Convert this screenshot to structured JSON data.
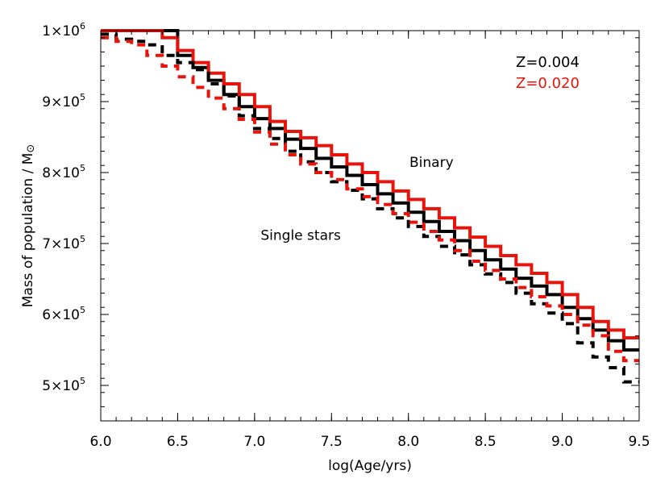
{
  "chart_data": {
    "type": "line",
    "title": "",
    "xlabel": "log(Age/yrs)",
    "ylabel": "Mass of population / M",
    "ylabel_symbol": "⊙",
    "xlim": [
      6.0,
      9.5
    ],
    "ylim": [
      450000,
      1000000
    ],
    "xticks": [
      {
        "value": 6.0,
        "label": "6.0"
      },
      {
        "value": 6.5,
        "label": "6.5"
      },
      {
        "value": 7.0,
        "label": "7.0"
      },
      {
        "value": 7.5,
        "label": "7.5"
      },
      {
        "value": 8.0,
        "label": "8.0"
      },
      {
        "value": 8.5,
        "label": "8.5"
      },
      {
        "value": 9.0,
        "label": "9.0"
      },
      {
        "value": 9.5,
        "label": "9.5"
      }
    ],
    "yticks": [
      {
        "value": 500000,
        "mantissa": "5×10",
        "exp": "5"
      },
      {
        "value": 600000,
        "mantissa": "6×10",
        "exp": "5"
      },
      {
        "value": 700000,
        "mantissa": "7×10",
        "exp": "5"
      },
      {
        "value": 800000,
        "mantissa": "8×10",
        "exp": "5"
      },
      {
        "value": 900000,
        "mantissa": "9×10",
        "exp": "5"
      },
      {
        "value": 1000000,
        "mantissa": "1×10",
        "exp": "6"
      }
    ],
    "legend": [
      {
        "label": "Z=0.004",
        "color": "#000000"
      },
      {
        "label": "Z=0.020",
        "color": "#e8140c"
      }
    ],
    "annotations": [
      {
        "text": "Binary",
        "x": 8.15,
        "y": 808000
      },
      {
        "text": "Single stars",
        "x": 7.3,
        "y": 705000
      }
    ],
    "step_width": 0.1,
    "grid": false,
    "series": [
      {
        "metallicity": "Z=0.004",
        "population": "Binary",
        "color": "#000000",
        "dash": "solid",
        "x": [
          6.0,
          6.1,
          6.2,
          6.3,
          6.4,
          6.5,
          6.6,
          6.7,
          6.8,
          6.9,
          7.0,
          7.1,
          7.2,
          7.3,
          7.4,
          7.5,
          7.6,
          7.7,
          7.8,
          7.9,
          8.0,
          8.1,
          8.2,
          8.3,
          8.4,
          8.5,
          8.6,
          8.7,
          8.8,
          8.9,
          9.0,
          9.1,
          9.2,
          9.3,
          9.4
        ],
        "y": [
          1000000,
          1000000,
          1000000,
          1000000,
          1000000,
          965000,
          948000,
          930000,
          910000,
          893000,
          876000,
          862000,
          847000,
          834000,
          820000,
          808000,
          796000,
          783000,
          770000,
          757000,
          744000,
          731000,
          717000,
          704000,
          690000,
          677000,
          664000,
          651000,
          640000,
          628000,
          610000,
          594000,
          578000,
          563000,
          550000
        ]
      },
      {
        "metallicity": "Z=0.020",
        "population": "Binary",
        "color": "#e8140c",
        "dash": "solid",
        "x": [
          6.0,
          6.1,
          6.2,
          6.3,
          6.4,
          6.5,
          6.6,
          6.7,
          6.8,
          6.9,
          7.0,
          7.1,
          7.2,
          7.3,
          7.4,
          7.5,
          7.6,
          7.7,
          7.8,
          7.9,
          8.0,
          8.1,
          8.2,
          8.3,
          8.4,
          8.5,
          8.6,
          8.7,
          8.8,
          8.9,
          9.0,
          9.1,
          9.2,
          9.3,
          9.4
        ],
        "y": [
          1000000,
          1000000,
          1000000,
          1000000,
          990000,
          972000,
          955000,
          940000,
          925000,
          910000,
          893000,
          872000,
          858000,
          849000,
          838000,
          825000,
          812000,
          800000,
          787000,
          774000,
          762000,
          749000,
          736000,
          722000,
          709000,
          696000,
          683000,
          670000,
          658000,
          645000,
          628000,
          610000,
          590000,
          578000,
          567000
        ]
      },
      {
        "metallicity": "Z=0.004",
        "population": "Single stars",
        "color": "#000000",
        "dash": "dashed",
        "x": [
          6.0,
          6.1,
          6.2,
          6.3,
          6.4,
          6.5,
          6.6,
          6.7,
          6.8,
          6.9,
          7.0,
          7.1,
          7.2,
          7.3,
          7.4,
          7.5,
          7.6,
          7.7,
          7.8,
          7.9,
          8.0,
          8.1,
          8.2,
          8.3,
          8.4,
          8.5,
          8.6,
          8.7,
          8.8,
          8.9,
          9.0,
          9.1,
          9.2,
          9.3,
          9.4
        ],
        "y": [
          995000,
          988000,
          985000,
          980000,
          965000,
          955000,
          945000,
          925000,
          908000,
          880000,
          862000,
          848000,
          830000,
          815000,
          800000,
          787000,
          775000,
          763000,
          749000,
          736000,
          724000,
          710000,
          696000,
          684000,
          670000,
          657000,
          645000,
          630000,
          615000,
          602000,
          587000,
          560000,
          540000,
          525000,
          505000
        ]
      },
      {
        "metallicity": "Z=0.020",
        "population": "Single stars",
        "color": "#e8140c",
        "dash": "dashed",
        "x": [
          6.0,
          6.1,
          6.2,
          6.3,
          6.4,
          6.5,
          6.6,
          6.7,
          6.8,
          6.9,
          7.0,
          7.1,
          7.2,
          7.3,
          7.4,
          7.5,
          7.6,
          7.7,
          7.8,
          7.9,
          8.0,
          8.1,
          8.2,
          8.3,
          8.4,
          8.5,
          8.6,
          8.7,
          8.8,
          8.9,
          9.0,
          9.1,
          9.2,
          9.3,
          9.4
        ],
        "y": [
          990000,
          985000,
          980000,
          965000,
          950000,
          935000,
          920000,
          905000,
          890000,
          875000,
          857000,
          840000,
          825000,
          812000,
          800000,
          790000,
          777000,
          766000,
          755000,
          742000,
          730000,
          717000,
          705000,
          690000,
          675000,
          662000,
          650000,
          638000,
          625000,
          612000,
          600000,
          585000,
          570000,
          548000,
          535000
        ]
      }
    ]
  }
}
